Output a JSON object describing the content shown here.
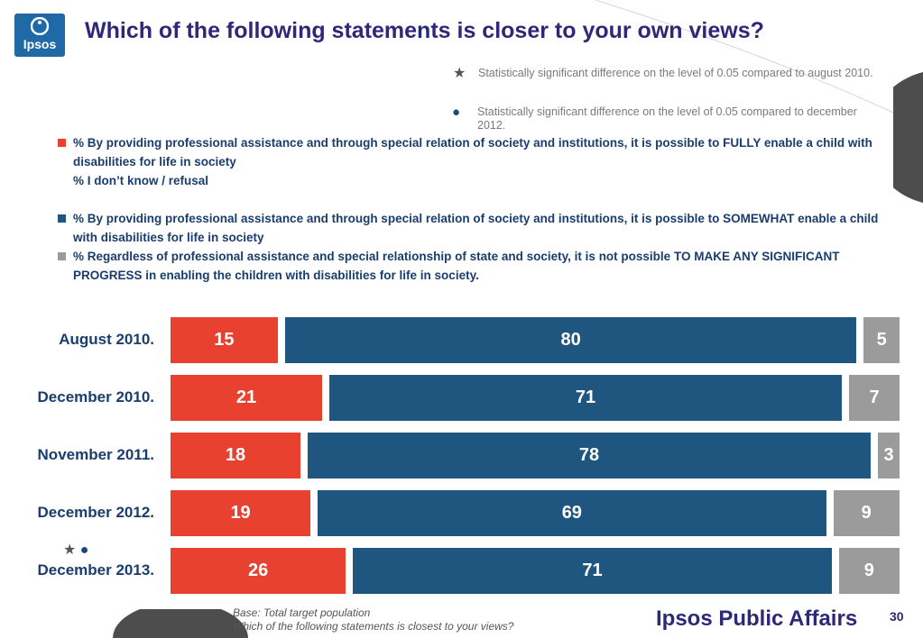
{
  "header": {
    "title": "Which of the following statements is closer to your own views?",
    "logo_text": "Ipsos"
  },
  "significance": {
    "star_symbol": "★",
    "star_text": "Statistically significant difference on the level of  0.05 compared to august 2010.",
    "dot_symbol": "●",
    "dot_text": "Statistically significant difference on the level of  0.05 compared to december 2012."
  },
  "chart_data": {
    "type": "bar",
    "stacked": true,
    "orientation": "horizontal",
    "categories": [
      "August 2010.",
      "December 2010.",
      "November 2011.",
      "December 2012.",
      "December 2013."
    ],
    "series": [
      {
        "name": "% By providing professional assistance and through special relation of society and institutions, it is possible to FULLY enable a child with disabilities  for life in society",
        "values": [
          15,
          21,
          18,
          19,
          26
        ],
        "color": "#e8412f"
      },
      {
        "name": "% By providing professional assistance and through special relation of society and institutions, it is possible to SOMEWHAT enable a child with disabilities  for life in society",
        "values": [
          80,
          71,
          78,
          69,
          71
        ],
        "color": "#1f567f"
      },
      {
        "name": "% Regardless of professional assistance and special relationship of state and society, it is not possible TO MAKE ANY SIGNIFICANT PROGRESS in enabling the children with disabilities for life in society.",
        "values": [
          5,
          7,
          3,
          9,
          9
        ],
        "color": "#9b9b9b"
      }
    ],
    "dont_know_label": "% I don’t know / refusal",
    "dont_know_values": null,
    "significance_marks": {
      "December 2013.": [
        "★",
        "●"
      ]
    },
    "legend_position": "top",
    "grid": false
  },
  "footer": {
    "base": "Base: Total target population",
    "question": "Which of the following statements is closest to your views?",
    "brand": "Ipsos Public Affairs",
    "page_number": "30"
  }
}
